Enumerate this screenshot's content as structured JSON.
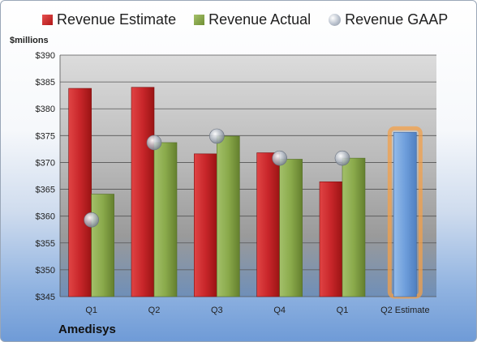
{
  "chart_data": {
    "type": "bar",
    "categories": [
      "Q1",
      "Q2",
      "Q3",
      "Q4",
      "Q1",
      "Q2 Estimate"
    ],
    "series": [
      {
        "name": "Revenue Estimate",
        "values": [
          383.8,
          384.0,
          371.6,
          371.8,
          366.4,
          375.6
        ]
      },
      {
        "name": "Revenue Actual",
        "values": [
          364.1,
          373.7,
          374.9,
          370.6,
          370.8,
          null
        ]
      },
      {
        "name": "Revenue GAAP",
        "values": [
          359.3,
          373.7,
          374.9,
          370.8,
          370.8,
          null
        ]
      }
    ],
    "ylabel": "$millions",
    "ylim": [
      345,
      390
    ],
    "yticks": [
      "$345",
      "$350",
      "$355",
      "$360",
      "$365",
      "$370",
      "$375",
      "$380",
      "$385",
      "$390"
    ],
    "grid": true,
    "legend": "top",
    "company": "Amedisys",
    "colors": {
      "estimate": "#c8262a",
      "actual": "#8aaa4b",
      "gaap": "#b9c0ca",
      "future": "#6f9fdc",
      "highlight": "#f3a04a"
    }
  }
}
